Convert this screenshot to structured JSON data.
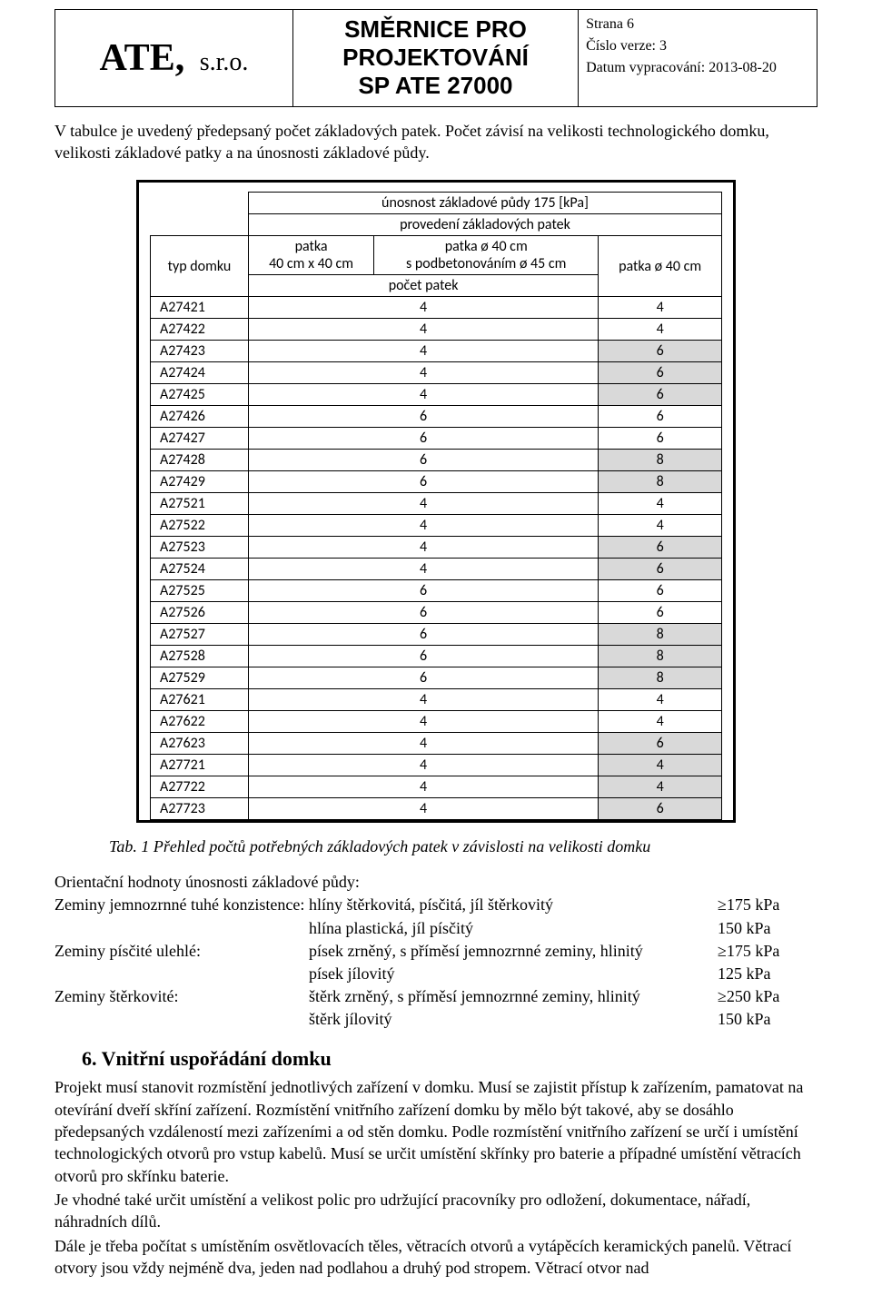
{
  "header": {
    "company": "ATE,",
    "company_suffix": "s.r.o.",
    "title_line1": "SMĚRNICE PRO",
    "title_line2": "PROJEKTOVÁNÍ",
    "title_line3": "SP  ATE  27000",
    "page": "Strana 6",
    "version": "Číslo verze: 3",
    "date": "Datum vypracování: 2013-08-20"
  },
  "intro": "V tabulce je uvedený předepsaný počet základových patek. Počet závisí na velikosti technologického domku, velikosti základové patky a na únosnosti základové půdy.",
  "table": {
    "title": "únosnost základové půdy 175 [kPa]",
    "header_group": "provedení základových patek",
    "header_typ": "typ domku",
    "header_col1": "patka\n40 cm x 40 cm",
    "header_col2": "patka ø 40 cm\ns podbetonováním ø 45 cm",
    "header_col3": "patka ø 40 cm",
    "header_row2": "počet patek",
    "rows": [
      {
        "typ": "A27421",
        "c1": "4",
        "c3": "4",
        "shade": false
      },
      {
        "typ": "A27422",
        "c1": "4",
        "c3": "4",
        "shade": false
      },
      {
        "typ": "A27423",
        "c1": "4",
        "c3": "6",
        "shade": true
      },
      {
        "typ": "A27424",
        "c1": "4",
        "c3": "6",
        "shade": true
      },
      {
        "typ": "A27425",
        "c1": "4",
        "c3": "6",
        "shade": true
      },
      {
        "typ": "A27426",
        "c1": "6",
        "c3": "6",
        "shade": false
      },
      {
        "typ": "A27427",
        "c1": "6",
        "c3": "6",
        "shade": false
      },
      {
        "typ": "A27428",
        "c1": "6",
        "c3": "8",
        "shade": true
      },
      {
        "typ": "A27429",
        "c1": "6",
        "c3": "8",
        "shade": true
      },
      {
        "typ": "A27521",
        "c1": "4",
        "c3": "4",
        "shade": false
      },
      {
        "typ": "A27522",
        "c1": "4",
        "c3": "4",
        "shade": false
      },
      {
        "typ": "A27523",
        "c1": "4",
        "c3": "6",
        "shade": true
      },
      {
        "typ": "A27524",
        "c1": "4",
        "c3": "6",
        "shade": true
      },
      {
        "typ": "A27525",
        "c1": "6",
        "c3": "6",
        "shade": false
      },
      {
        "typ": "A27526",
        "c1": "6",
        "c3": "6",
        "shade": false
      },
      {
        "typ": "A27527",
        "c1": "6",
        "c3": "8",
        "shade": true
      },
      {
        "typ": "A27528",
        "c1": "6",
        "c3": "8",
        "shade": true
      },
      {
        "typ": "A27529",
        "c1": "6",
        "c3": "8",
        "shade": true
      },
      {
        "typ": "A27621",
        "c1": "4",
        "c3": "4",
        "shade": false
      },
      {
        "typ": "A27622",
        "c1": "4",
        "c3": "4",
        "shade": false
      },
      {
        "typ": "A27623",
        "c1": "4",
        "c3": "6",
        "shade": true
      },
      {
        "typ": "A27721",
        "c1": "4",
        "c3": "4",
        "shade": true
      },
      {
        "typ": "A27722",
        "c1": "4",
        "c3": "4",
        "shade": true
      },
      {
        "typ": "A27723",
        "c1": "4",
        "c3": "6",
        "shade": true
      }
    ]
  },
  "caption": "Tab. 1 Přehled  počtů potřebných základových patek v závislosti na velikosti domku",
  "soil": {
    "heading": "Orientační hodnoty únosnosti základové půdy:",
    "lines": [
      {
        "l": "Zeminy jemnozrnné tuhé konzistence:",
        "m": "hlíny štěrkovitá, písčitá, jíl štěrkovitý",
        "v": "≥175 kPa"
      },
      {
        "l": "",
        "m": "hlína plastická, jíl písčitý",
        "v": "150 kPa"
      },
      {
        "l": "Zeminy písčité ulehlé:",
        "m": "písek zrněný, s příměsí jemnozrnné zeminy, hlinitý",
        "v": "≥175 kPa"
      },
      {
        "l": "",
        "m": "písek jílovitý",
        "v": "125 kPa"
      },
      {
        "l": "Zeminy štěrkovité:",
        "m": "štěrk zrněný, s příměsí jemnozrnné zeminy, hlinitý",
        "v": "≥250 kPa"
      },
      {
        "l": "",
        "m": "štěrk jílovitý",
        "v": "150 kPa"
      }
    ]
  },
  "section6": {
    "title": "6.  Vnitřní uspořádání domku",
    "p1": "Projekt musí stanovit rozmístění jednotlivých zařízení v domku. Musí se zajistit přístup k zařízením, pamatovat na otevírání dveří skříní zařízení. Rozmístění vnitřního zařízení domku by mělo být takové, aby se dosáhlo předepsaných vzdáleností mezi zařízeními a od stěn domku. Podle rozmístění vnitřního zařízení se určí i umístění technologických otvorů pro vstup kabelů. Musí se určit umístění skřínky pro baterie a případné umístění větracích otvorů pro skřínku baterie.",
    "p2": "Je vhodné také určit umístění a velikost polic pro udržující pracovníky pro odložení, dokumentace, nářadí, náhradních dílů.",
    "p3": "Dále je třeba počítat s umístěním osvětlovacích těles, větracích otvorů a vytápěcích keramických panelů. Větrací otvory jsou vždy nejméně dva, jeden nad podlahou a druhý pod stropem. Větrací otvor nad"
  },
  "style": {
    "shade_color": "#d9d9d9",
    "border_color": "#000000",
    "bg_color": "#ffffff",
    "body_font": "Times New Roman",
    "table_font": "Calibri"
  }
}
